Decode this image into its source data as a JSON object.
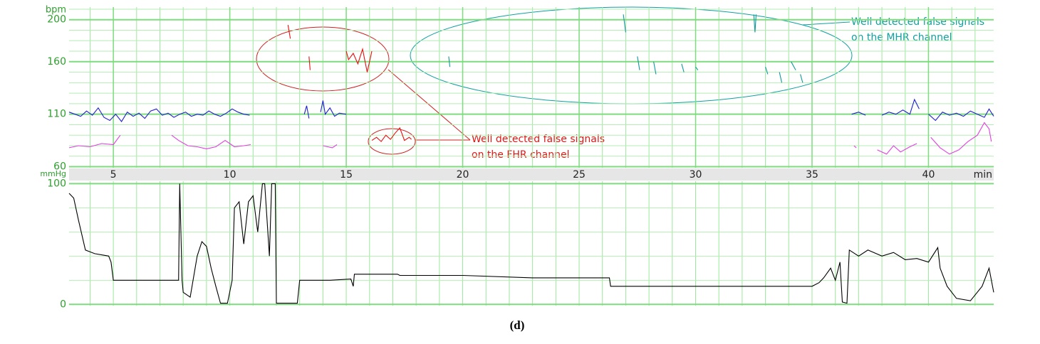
{
  "chart_data": [
    {
      "type": "line",
      "y_label": "bpm",
      "x_label": "min",
      "xlim": [
        3.1,
        42.8
      ],
      "ylim": [
        59,
        212
      ],
      "xticks": [
        5,
        10,
        15,
        20,
        25,
        30,
        35,
        40
      ],
      "yticks": [
        60,
        110,
        160,
        200
      ],
      "x_grid_step": 1,
      "y_grid_step": 10,
      "grid": true,
      "series": [
        {
          "color": "#1f1fd0",
          "x": [
            3.1,
            3.35,
            3.6,
            3.85,
            4.1,
            4.35,
            4.6,
            4.85,
            5.1,
            5.35,
            5.6,
            5.85,
            6.1,
            6.35,
            6.6,
            6.85,
            7.1,
            7.35,
            7.6,
            7.85,
            8.1,
            8.35,
            8.6,
            8.85,
            9.1,
            9.35,
            9.6,
            9.85,
            10.1,
            10.35,
            10.6,
            10.85,
            11,
            13.2,
            13.3,
            13.4,
            13.6,
            13.9,
            14.0,
            14.1,
            14.3,
            14.5,
            14.7,
            15.0,
            15.5,
            36.7,
            37.0,
            37.3,
            37.5,
            38.0,
            38.3,
            38.6,
            38.9,
            39.2,
            39.4,
            39.6,
            39.8,
            40.0,
            40.3,
            40.6,
            40.9,
            41.2,
            41.5,
            41.8,
            42.1,
            42.4,
            42.6,
            42.8
          ],
          "values": [
            112,
            110,
            108,
            113,
            109,
            116,
            107,
            104,
            110,
            103,
            112,
            108,
            111,
            106,
            113,
            115,
            109,
            111,
            107,
            110,
            112,
            108,
            110,
            109,
            113,
            110,
            108,
            111,
            115,
            112,
            110,
            109,
            null,
            110,
            118,
            106,
            null,
            112,
            123,
            110,
            116,
            108,
            111,
            110,
            null,
            110,
            112,
            109,
            null,
            109,
            112,
            110,
            114,
            110,
            124,
            115,
            null,
            110,
            104,
            112,
            109,
            111,
            108,
            113,
            110,
            107,
            115,
            108
          ]
        },
        {
          "color": "#e040e0",
          "x": [
            3.1,
            3.5,
            4.0,
            4.5,
            5.0,
            5.3,
            5.6,
            7.5,
            7.8,
            8.2,
            8.6,
            9.0,
            9.4,
            9.8,
            10.2,
            10.6,
            10.9,
            11.2,
            14.0,
            14.4,
            14.6,
            15.0,
            36.8,
            36.9,
            37.2,
            37.8,
            38.2,
            38.5,
            38.8,
            39.2,
            39.5,
            39.8,
            40.1,
            40.5,
            40.9,
            41.3,
            41.7,
            42.1,
            42.4,
            42.6,
            42.7
          ],
          "values": [
            78,
            80,
            79,
            82,
            81,
            90,
            null,
            90,
            85,
            80,
            79,
            77,
            79,
            85,
            79,
            80,
            81,
            null,
            80,
            78,
            81,
            null,
            80,
            78,
            null,
            76,
            72,
            80,
            74,
            79,
            82,
            null,
            88,
            78,
            72,
            76,
            84,
            90,
            102,
            96,
            84
          ]
        },
        {
          "color": "#e81010",
          "x": [
            12.5,
            12.6,
            12.7,
            13.4,
            13.45,
            13.6,
            15.0,
            15.1,
            15.3,
            15.5,
            15.7,
            15.9,
            16.1,
            16.2,
            16.1,
            16.3,
            16.5,
            16.7,
            16.9,
            17.1,
            17.3,
            17.5,
            17.7,
            17.8
          ],
          "values": [
            195,
            182,
            null,
            165,
            152,
            null,
            170,
            162,
            168,
            158,
            172,
            150,
            170,
            null,
            85,
            88,
            84,
            90,
            86,
            92,
            97,
            85,
            88,
            86
          ]
        },
        {
          "color": "#109a9a",
          "x": [
            19.4,
            19.45,
            19.6,
            26.9,
            27.0,
            27.2,
            27.5,
            27.6,
            27.8,
            28.2,
            28.3,
            28.5,
            29.4,
            29.5,
            29.7,
            30.0,
            30.1,
            30.3,
            32.5,
            32.55,
            32.6,
            32.8,
            33.0,
            33.1,
            33.3,
            33.6,
            33.7,
            33.9,
            34.1,
            34.3,
            34.4,
            34.5,
            34.6
          ],
          "values": [
            165,
            155,
            null,
            205,
            188,
            null,
            165,
            152,
            null,
            160,
            148,
            null,
            158,
            150,
            null,
            155,
            152,
            null,
            205,
            188,
            205,
            null,
            155,
            148,
            null,
            150,
            140,
            null,
            160,
            152,
            null,
            148,
            140
          ]
        }
      ]
    },
    {
      "type": "line",
      "y_label": "mmHg",
      "xlim": [
        3.1,
        42.8
      ],
      "ylim": [
        -1,
        102
      ],
      "yticks": [
        0,
        100
      ],
      "x_grid_step": 1,
      "y_grid_step": 20,
      "grid": true,
      "series": [
        {
          "color": "#000000",
          "x": [
            3.1,
            3.3,
            3.5,
            3.8,
            4.2,
            4.8,
            4.9,
            5.0,
            6,
            7,
            7.8,
            7.85,
            7.95,
            8.0,
            8.3,
            8.6,
            8.8,
            9.0,
            9.2,
            9.4,
            9.6,
            9.9,
            10.1,
            10.2,
            10.4,
            10.6,
            10.8,
            11,
            11.2,
            11.4,
            11.5,
            11.7,
            11.8,
            11.95,
            12,
            12.9,
            13,
            13.5,
            14.3,
            15.2,
            15.3,
            15.35,
            16,
            16.5,
            17.2,
            17.3,
            20,
            23,
            26.3,
            26.35,
            28,
            30,
            32,
            34.5,
            35,
            35.3,
            35.5,
            35.8,
            36,
            36.2,
            36.3,
            36.5,
            36.6,
            37,
            37.4,
            38,
            38.5,
            39,
            39.5,
            40,
            40.4,
            40.5,
            40.8,
            41.2,
            41.8,
            42.3,
            42.6,
            42.8
          ],
          "values": [
            92,
            88,
            70,
            45,
            42,
            40,
            35,
            20,
            20,
            20,
            20,
            100,
            20,
            10,
            6,
            40,
            52,
            48,
            30,
            15,
            1,
            1,
            20,
            80,
            85,
            50,
            85,
            90,
            60,
            100,
            100,
            40,
            100,
            100,
            1,
            1,
            20,
            20,
            20,
            21,
            15,
            25,
            25,
            25,
            25,
            24,
            24,
            22,
            22,
            15,
            15,
            15,
            15,
            15,
            15,
            18,
            22,
            30,
            20,
            35,
            2,
            1,
            45,
            40,
            45,
            40,
            43,
            37,
            38,
            35,
            47,
            30,
            15,
            5,
            3,
            15,
            30,
            10
          ]
        }
      ]
    }
  ],
  "annotations": [
    {
      "color": "#10a0a0",
      "lines": [
        "Well detected false signals",
        "on the MHR channel"
      ]
    },
    {
      "color": "#e01818",
      "lines": [
        "Well detected false signals",
        "on the FHR channel"
      ]
    }
  ],
  "caption": "(d)"
}
